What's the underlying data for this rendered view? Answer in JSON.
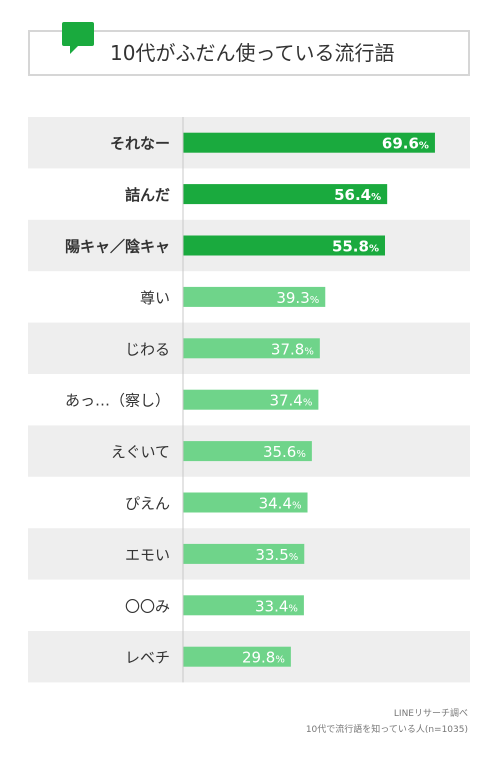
{
  "title": "10代がふだん使っている流行語",
  "colors": {
    "accent": "#1aaa3e",
    "light": "#6fd48a",
    "stripe": "#eeeeee",
    "title_icon": "#1aaa3e"
  },
  "icon": "speech-bubble-icon",
  "footer": {
    "source": "LINEリサーチ調べ",
    "sample": "10代で流行語を知っている人(n=1035)"
  },
  "chart_data": {
    "type": "bar",
    "orientation": "horizontal",
    "title": "10代がふだん使っている流行語",
    "categories": [
      "それなー",
      "詰んだ",
      "陽キャ／陰キャ",
      "尊い",
      "じわる",
      "あっ…（察し）",
      "えぐいて",
      "ぴえん",
      "エモい",
      "〇〇み",
      "レベチ"
    ],
    "values": [
      69.6,
      56.4,
      55.8,
      39.3,
      37.8,
      37.4,
      35.6,
      34.4,
      33.5,
      33.4,
      29.8
    ],
    "unit": "%",
    "highlighted_top": 3,
    "grid": false,
    "legend": "none"
  }
}
